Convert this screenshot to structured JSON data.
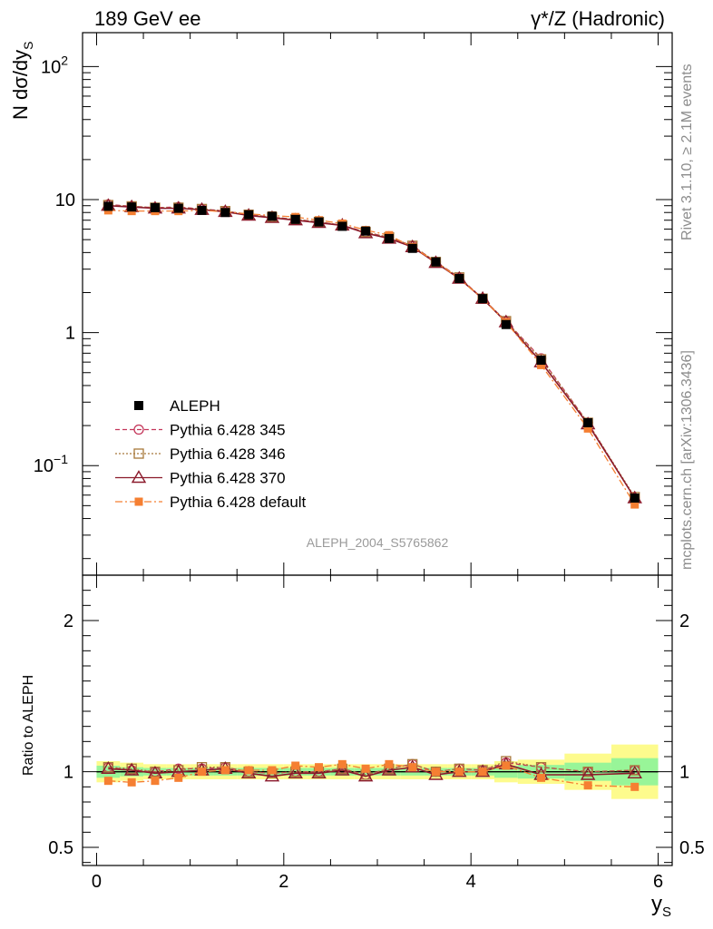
{
  "header": {
    "left": "189 GeV ee",
    "right": "γ*/Z (Hadronic)"
  },
  "side_text": {
    "rivet": "Rivet 3.1.10, ≥ 2.1M events",
    "mcplots": "mcplots.cern.ch [arXiv:1306.3436]"
  },
  "watermark": "ALEPH_2004_S5765862",
  "chart_data": [
    {
      "type": "line",
      "title": "189 GeV ee",
      "ylabel": "N dσ/dy_S",
      "xlabel": "y_S",
      "yscale": "log",
      "ylim": [
        0.015,
        180
      ],
      "xlim": [
        -0.15,
        6.15
      ],
      "y_ticks": [
        {
          "v": 100,
          "base": "10",
          "sup": "2"
        },
        {
          "v": 10,
          "base": "10",
          "sup": ""
        },
        {
          "v": 1,
          "base": "1",
          "sup": ""
        },
        {
          "v": 0.1,
          "base": "10",
          "sup": "−1"
        }
      ],
      "x": [
        0.125,
        0.375,
        0.625,
        0.875,
        1.125,
        1.375,
        1.625,
        1.875,
        2.125,
        2.375,
        2.625,
        2.875,
        3.125,
        3.375,
        3.625,
        3.875,
        4.125,
        4.375,
        4.75,
        5.25,
        5.75
      ],
      "series": [
        {
          "name": "ALEPH",
          "style": "data",
          "color": "#000000",
          "values": [
            8.9,
            8.8,
            8.7,
            8.6,
            8.3,
            8.0,
            7.7,
            7.5,
            7.1,
            6.8,
            6.3,
            5.8,
            5.1,
            4.3,
            3.4,
            2.55,
            1.8,
            1.15,
            0.62,
            0.21,
            0.057
          ]
        },
        {
          "name": "Pythia 6.428 345",
          "style": "circle",
          "color": "#c4365a",
          "values": [
            9.2,
            8.9,
            8.7,
            8.8,
            8.5,
            8.2,
            7.7,
            7.4,
            7.1,
            6.8,
            6.4,
            5.7,
            5.2,
            4.5,
            3.4,
            2.6,
            1.8,
            1.22,
            0.64,
            0.21,
            0.057
          ]
        },
        {
          "name": "Pythia 6.428 346",
          "style": "square",
          "color": "#a8783a",
          "values": [
            9.1,
            8.9,
            8.7,
            8.7,
            8.5,
            8.2,
            7.7,
            7.4,
            7.1,
            6.8,
            6.4,
            5.7,
            5.2,
            4.5,
            3.4,
            2.6,
            1.8,
            1.22,
            0.63,
            0.21,
            0.058
          ]
        },
        {
          "name": "Pythia 6.428 370",
          "style": "triangle",
          "color": "#8b1a2b",
          "values": [
            9.0,
            8.8,
            8.6,
            8.6,
            8.4,
            8.1,
            7.6,
            7.3,
            7.0,
            6.7,
            6.4,
            5.6,
            5.1,
            4.4,
            3.35,
            2.55,
            1.8,
            1.2,
            0.6,
            0.205,
            0.057
          ]
        },
        {
          "name": "Pythia 6.428 default",
          "style": "filledsquare",
          "color": "#f57f32",
          "values": [
            8.3,
            8.2,
            8.2,
            8.2,
            8.3,
            8.1,
            7.8,
            7.6,
            7.4,
            7.0,
            6.6,
            5.9,
            5.4,
            4.4,
            3.4,
            2.55,
            1.8,
            1.2,
            0.57,
            0.19,
            0.051
          ]
        }
      ],
      "legend": [
        "ALEPH",
        "Pythia 6.428 345",
        "Pythia 6.428 346",
        "Pythia 6.428 370",
        "Pythia 6.428 default"
      ],
      "legend_position": "lower-left"
    },
    {
      "type": "line",
      "ylabel": "Ratio to ALEPH",
      "xlabel": "y_S",
      "ylim": [
        0.38,
        2.3
      ],
      "xlim": [
        -0.15,
        6.15
      ],
      "y_ticks": [
        {
          "v": 2,
          "label": "2"
        },
        {
          "v": 1,
          "label": "1"
        },
        {
          "v": 0.5,
          "label": "0.5"
        }
      ],
      "x_ticks": [
        {
          "v": 0,
          "label": "0"
        },
        {
          "v": 2,
          "label": "2"
        },
        {
          "v": 4,
          "label": "4"
        },
        {
          "v": 6,
          "label": "6"
        }
      ],
      "x_edges": [
        0,
        0.25,
        0.5,
        0.75,
        1,
        1.25,
        1.5,
        1.75,
        2,
        2.25,
        2.5,
        2.75,
        3,
        3.25,
        3.5,
        3.75,
        4,
        4.25,
        4.5,
        5,
        5.5,
        6
      ],
      "band_green": [
        0.04,
        0.03,
        0.025,
        0.025,
        0.025,
        0.025,
        0.025,
        0.025,
        0.025,
        0.025,
        0.025,
        0.025,
        0.025,
        0.025,
        0.025,
        0.025,
        0.025,
        0.04,
        0.045,
        0.06,
        0.09
      ],
      "band_yellow": [
        0.07,
        0.06,
        0.05,
        0.05,
        0.05,
        0.05,
        0.05,
        0.05,
        0.05,
        0.05,
        0.05,
        0.05,
        0.05,
        0.05,
        0.05,
        0.05,
        0.05,
        0.07,
        0.08,
        0.12,
        0.18
      ],
      "x": [
        0.125,
        0.375,
        0.625,
        0.875,
        1.125,
        1.375,
        1.625,
        1.875,
        2.125,
        2.375,
        2.625,
        2.875,
        3.125,
        3.375,
        3.625,
        3.875,
        4.125,
        4.375,
        4.75,
        5.25,
        5.75
      ],
      "series": [
        {
          "name": "Pythia 6.428 345",
          "style": "circle",
          "color": "#c4365a",
          "values": [
            1.03,
            1.01,
            1.0,
            1.02,
            1.02,
            1.03,
            1.0,
            0.99,
            1.0,
            1.0,
            1.02,
            0.98,
            1.02,
            1.05,
            1.0,
            1.02,
            1.01,
            1.06,
            1.03,
            1.0,
            1.01
          ]
        },
        {
          "name": "Pythia 6.428 346",
          "style": "square",
          "color": "#a8783a",
          "values": [
            1.03,
            1.02,
            1.0,
            1.01,
            1.03,
            1.03,
            1.0,
            0.99,
            1.0,
            1.0,
            1.02,
            0.98,
            1.02,
            1.05,
            1.0,
            1.02,
            1.01,
            1.07,
            1.03,
            1.0,
            1.01
          ]
        },
        {
          "name": "Pythia 6.428 370",
          "style": "triangle",
          "color": "#8b1a2b",
          "values": [
            1.02,
            1.01,
            0.99,
            1.0,
            1.01,
            1.02,
            0.99,
            0.97,
            0.99,
            0.99,
            1.01,
            0.97,
            1.01,
            1.03,
            0.98,
            1.0,
            1.0,
            1.05,
            0.98,
            0.98,
            0.99
          ]
        },
        {
          "name": "Pythia 6.428 default",
          "style": "filledsquare",
          "color": "#f57f32",
          "values": [
            0.94,
            0.93,
            0.94,
            0.96,
            1.0,
            1.01,
            1.01,
            1.01,
            1.04,
            1.03,
            1.05,
            1.02,
            1.05,
            1.03,
            1.0,
            1.0,
            1.0,
            1.04,
            0.96,
            0.91,
            0.9
          ]
        }
      ]
    }
  ]
}
